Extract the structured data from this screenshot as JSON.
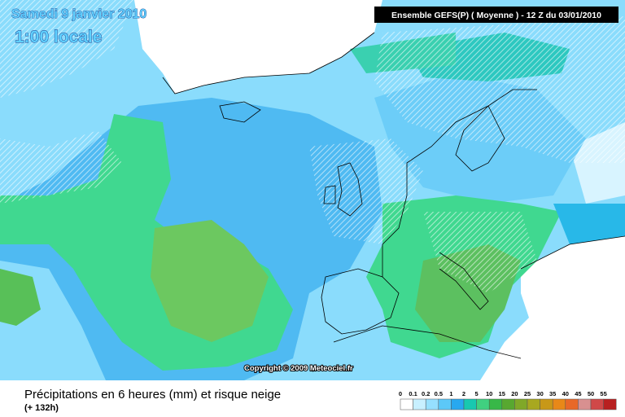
{
  "header": {
    "date": "Samedi 9 janvier 2010",
    "time": "1:00 locale",
    "model": "Ensemble GEFS(P) ( Moyenne )  - 12 Z du 03/01/2010"
  },
  "copyright": "Copyright © 2009 Meteociel.fr",
  "caption": {
    "title": "Précipitations en 6 heures (mm) et risque neige",
    "lead": "(+ 132h)"
  },
  "legend": {
    "stops": [
      {
        "value": 0,
        "color": "#ffffff"
      },
      {
        "value": 0.1,
        "color": "#c8f0ff"
      },
      {
        "value": 0.2,
        "color": "#96e0ff"
      },
      {
        "value": 0.5,
        "color": "#5cc8f8"
      },
      {
        "value": 1,
        "color": "#28a8f0"
      },
      {
        "value": 2,
        "color": "#18c8b0"
      },
      {
        "value": 5,
        "color": "#40d080"
      },
      {
        "value": 10,
        "color": "#38b848"
      },
      {
        "value": 15,
        "color": "#58a830"
      },
      {
        "value": 20,
        "color": "#80a828"
      },
      {
        "value": 25,
        "color": "#a8a820"
      },
      {
        "value": 30,
        "color": "#c89818"
      },
      {
        "value": 35,
        "color": "#e88818"
      },
      {
        "value": 40,
        "color": "#e86828"
      },
      {
        "value": 45,
        "color": "#d89090"
      },
      {
        "value": 50,
        "color": "#d04848"
      },
      {
        "value": 55,
        "color": "#b82020"
      }
    ]
  }
}
